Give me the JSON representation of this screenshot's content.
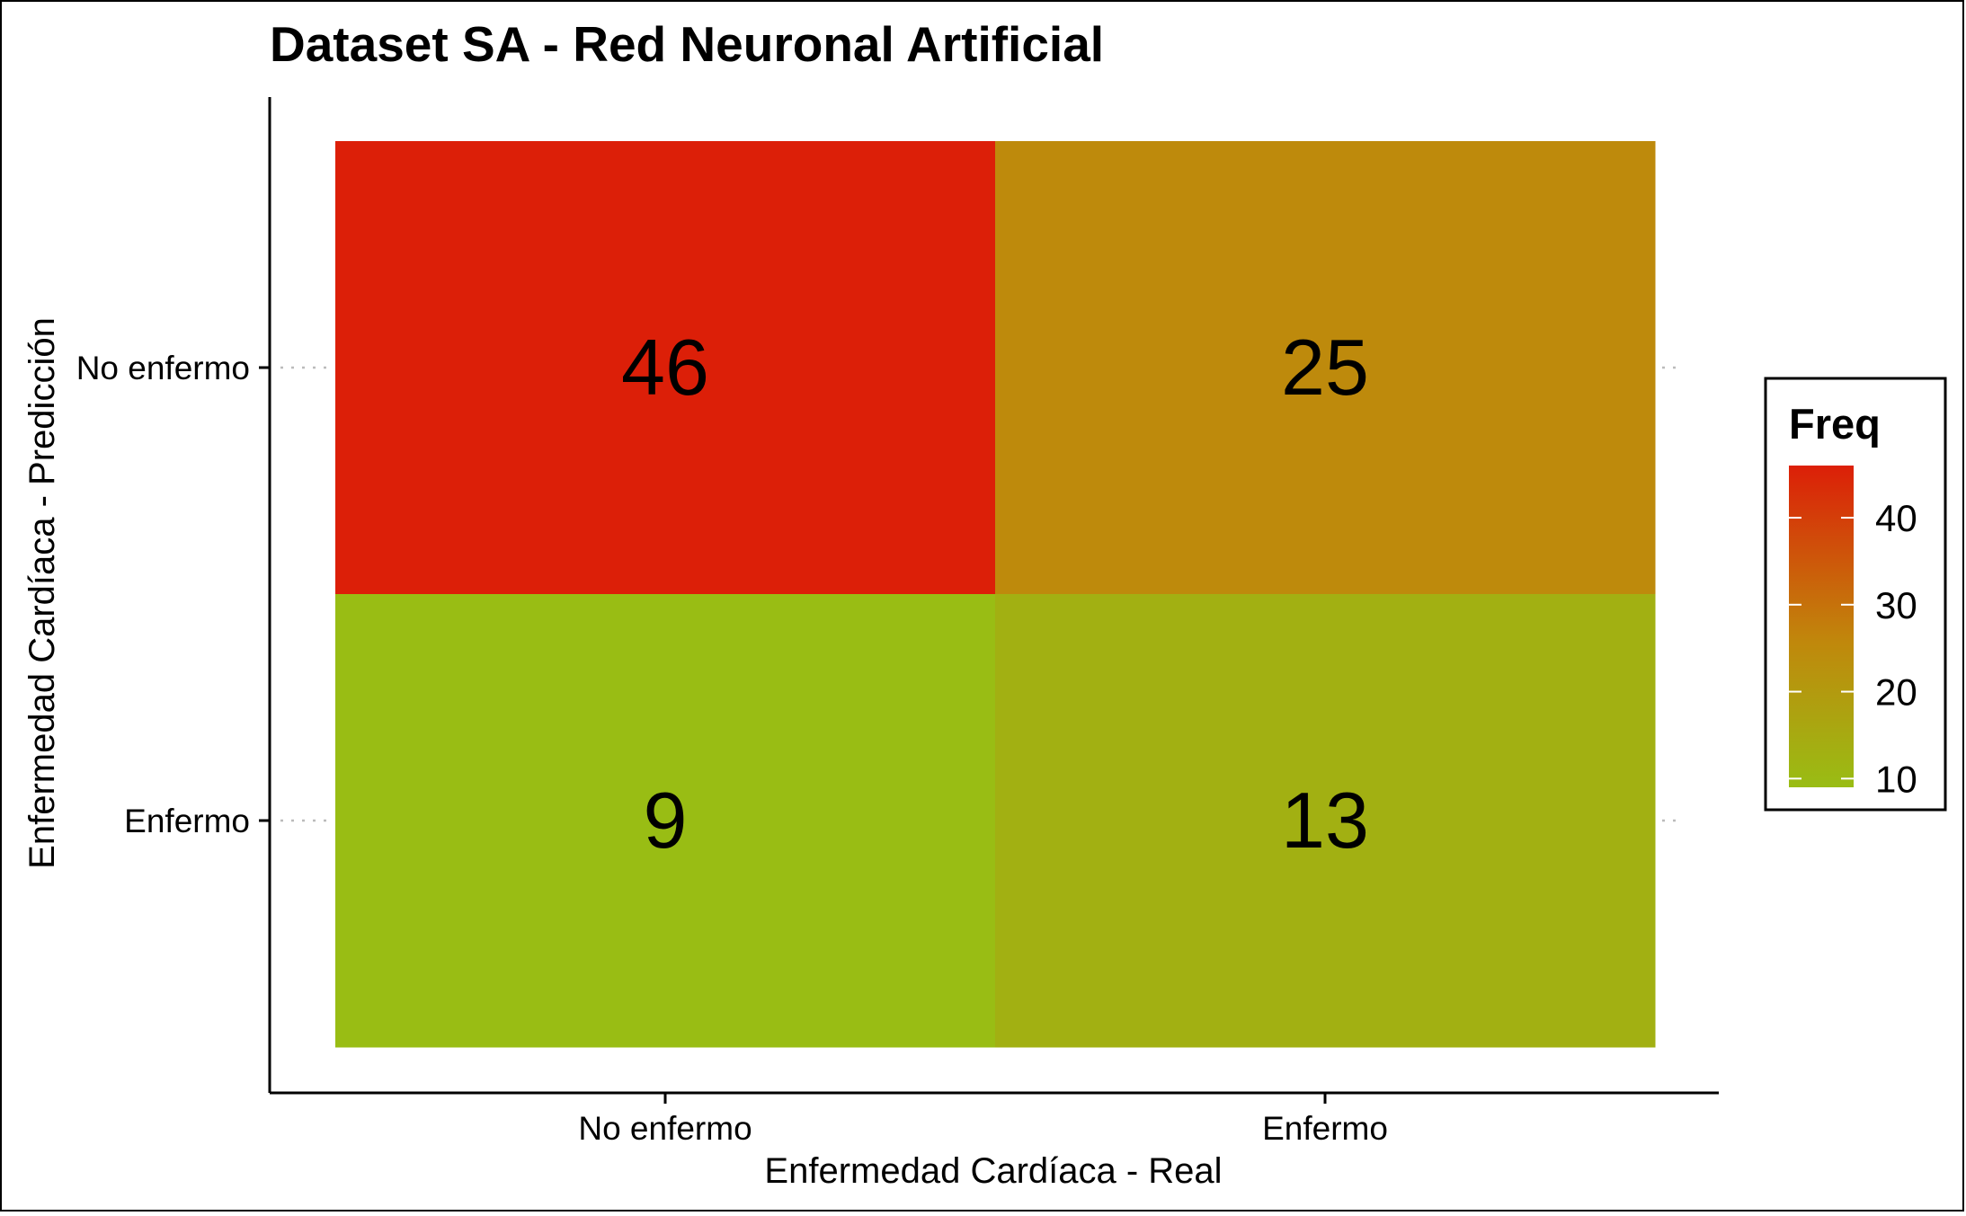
{
  "chart_data": {
    "type": "heatmap",
    "title": "Dataset SA - Red Neuronal Artificial",
    "xlabel": "Enfermedad Cardíaca - Real",
    "ylabel": "Enfermedad Cardíaca - Predicción",
    "x_categories": [
      "No enfermo",
      "Enfermo"
    ],
    "y_categories": [
      "No enfermo",
      "Enfermo"
    ],
    "cells": [
      {
        "x": "No enfermo",
        "y": "No enfermo",
        "value": 46
      },
      {
        "x": "Enfermo",
        "y": "No enfermo",
        "value": 25
      },
      {
        "x": "No enfermo",
        "y": "Enfermo",
        "value": 9
      },
      {
        "x": "Enfermo",
        "y": "Enfermo",
        "value": 13
      }
    ],
    "legend": {
      "title": "Freq",
      "ticks": [
        40,
        30,
        20,
        10
      ],
      "range": [
        9,
        46
      ],
      "position": "right"
    },
    "colors": {
      "low": "#99bd14",
      "mid": "#c0880c",
      "high": "#dc1f08"
    }
  }
}
